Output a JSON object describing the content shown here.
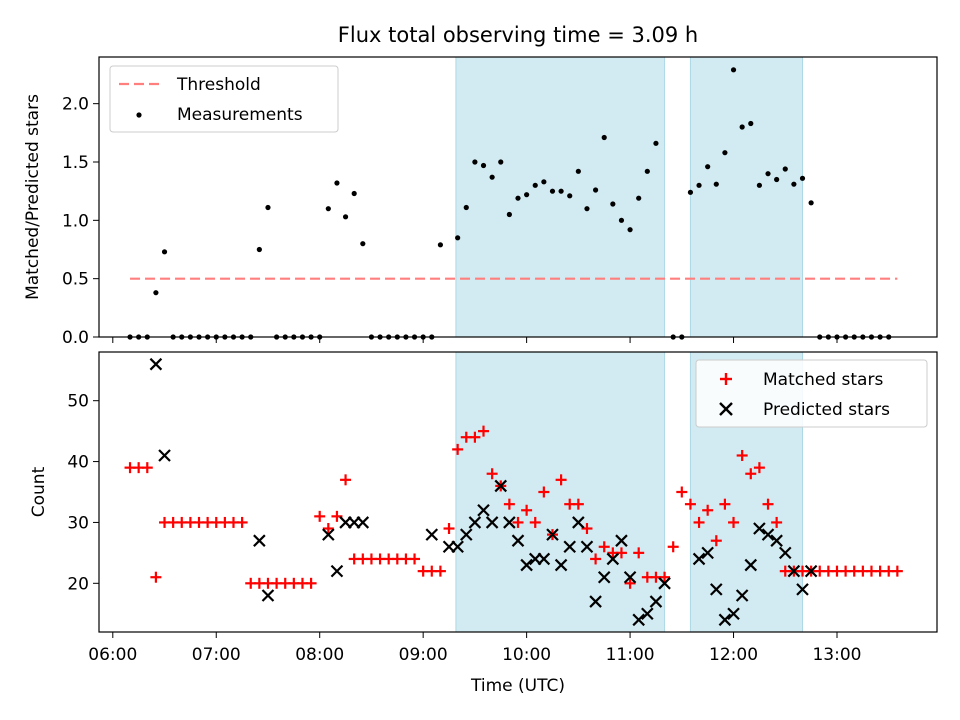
{
  "title": "Flux total observing time = 3.09 h",
  "colors": {
    "threshold": "#ff7f7f",
    "measurement": "#000000",
    "matched": "#ff0000",
    "predicted": "#000000",
    "shade": "#add8e6"
  },
  "chart_data": [
    {
      "type": "scatter",
      "ylabel": "Matched/Predicted stars",
      "ylim": [
        0,
        2.4
      ],
      "yticks": [
        0.0,
        0.5,
        1.0,
        1.5,
        2.0
      ],
      "ytick_labels": [
        "0.0",
        "0.5",
        "1.0",
        "1.5",
        "2.0"
      ],
      "shaded_intervals": [
        [
          "09:19",
          "11:20"
        ],
        [
          "11:35",
          "12:40"
        ]
      ],
      "legend": {
        "position": "top-left",
        "threshold_label": "Threshold",
        "measurement_label": "Measurements"
      },
      "threshold": {
        "value": 0.5,
        "x_start": "06:10",
        "x_end": "13:35"
      },
      "series": [
        {
          "name": "Measurements",
          "x": [
            "06:10",
            "06:15",
            "06:20",
            "06:25",
            "06:30",
            "06:35",
            "06:40",
            "06:45",
            "06:50",
            "06:55",
            "07:00",
            "07:05",
            "07:10",
            "07:15",
            "07:20",
            "07:25",
            "07:30",
            "07:35",
            "07:40",
            "07:45",
            "07:50",
            "07:55",
            "08:00",
            "08:05",
            "08:10",
            "08:15",
            "08:20",
            "08:25",
            "08:30",
            "08:35",
            "08:40",
            "08:45",
            "08:50",
            "08:55",
            "09:00",
            "09:05",
            "09:10",
            "09:20",
            "09:25",
            "09:30",
            "09:35",
            "09:40",
            "09:45",
            "09:50",
            "09:55",
            "10:00",
            "10:05",
            "10:10",
            "10:15",
            "10:20",
            "10:25",
            "10:30",
            "10:35",
            "10:40",
            "10:45",
            "10:50",
            "10:55",
            "11:00",
            "11:05",
            "11:10",
            "11:15",
            "11:25",
            "11:30",
            "11:35",
            "11:40",
            "11:45",
            "11:50",
            "11:55",
            "12:00",
            "12:05",
            "12:10",
            "12:15",
            "12:20",
            "12:25",
            "12:30",
            "12:35",
            "12:40",
            "12:45",
            "12:50",
            "12:55",
            "13:00",
            "13:05",
            "13:10",
            "13:15",
            "13:20",
            "13:25",
            "13:30"
          ],
          "y": [
            0,
            0,
            0,
            0.38,
            0.73,
            0,
            0,
            0,
            0,
            0,
            0,
            0,
            0,
            0,
            0,
            0.75,
            1.11,
            0,
            0,
            0,
            0,
            0,
            0,
            1.1,
            1.32,
            1.03,
            1.23,
            0.8,
            0,
            0,
            0,
            0,
            0,
            0,
            0,
            0,
            0.79,
            0.85,
            1.11,
            1.5,
            1.47,
            1.37,
            1.5,
            1.05,
            1.19,
            1.22,
            1.3,
            1.33,
            1.25,
            1.25,
            1.21,
            1.42,
            1.1,
            1.26,
            1.71,
            1.14,
            1.0,
            0.92,
            1.19,
            1.42,
            1.66,
            0,
            0,
            1.24,
            1.3,
            1.46,
            1.31,
            1.58,
            2.29,
            1.8,
            1.83,
            1.3,
            1.4,
            1.35,
            1.44,
            1.31,
            1.36,
            1.15,
            0,
            0,
            0,
            0,
            0,
            0,
            0,
            0,
            0
          ]
        }
      ]
    },
    {
      "type": "scatter",
      "xlabel": "Time (UTC)",
      "ylabel": "Count",
      "ylim": [
        12,
        58
      ],
      "yticks": [
        20,
        30,
        40,
        50
      ],
      "ytick_labels": [
        "20",
        "30",
        "40",
        "50"
      ],
      "xlim": [
        "05:52",
        "13:58"
      ],
      "xticks": [
        "06:00",
        "07:00",
        "08:00",
        "09:00",
        "10:00",
        "11:00",
        "12:00",
        "13:00"
      ],
      "legend": {
        "position": "top-right",
        "matched_label": "Matched stars",
        "predicted_label": "Predicted stars"
      },
      "series": [
        {
          "name": "Matched stars",
          "x": [
            "06:10",
            "06:15",
            "06:20",
            "06:25",
            "06:30",
            "06:35",
            "06:40",
            "06:45",
            "06:50",
            "06:55",
            "07:00",
            "07:05",
            "07:10",
            "07:15",
            "07:20",
            "07:25",
            "07:30",
            "07:35",
            "07:40",
            "07:45",
            "07:50",
            "07:55",
            "08:00",
            "08:05",
            "08:10",
            "08:15",
            "08:20",
            "08:25",
            "08:30",
            "08:35",
            "08:40",
            "08:45",
            "08:50",
            "08:55",
            "09:00",
            "09:05",
            "09:10",
            "09:15",
            "09:20",
            "09:25",
            "09:30",
            "09:35",
            "09:40",
            "09:45",
            "09:50",
            "09:55",
            "10:00",
            "10:05",
            "10:10",
            "10:15",
            "10:20",
            "10:25",
            "10:30",
            "10:35",
            "10:40",
            "10:45",
            "10:50",
            "10:55",
            "11:00",
            "11:05",
            "11:10",
            "11:15",
            "11:20",
            "11:25",
            "11:30",
            "11:35",
            "11:40",
            "11:45",
            "11:50",
            "11:55",
            "12:00",
            "12:05",
            "12:10",
            "12:15",
            "12:20",
            "12:25",
            "12:30",
            "12:35",
            "12:40",
            "12:45",
            "12:50",
            "12:55",
            "13:00",
            "13:05",
            "13:10",
            "13:15",
            "13:20",
            "13:25",
            "13:30",
            "13:35"
          ],
          "y": [
            39,
            39,
            39,
            21,
            30,
            30,
            30,
            30,
            30,
            30,
            30,
            30,
            30,
            30,
            20,
            20,
            20,
            20,
            20,
            20,
            20,
            20,
            31,
            29,
            31,
            37,
            24,
            24,
            24,
            24,
            24,
            24,
            24,
            24,
            22,
            22,
            22,
            29,
            42,
            44,
            44,
            45,
            38,
            36,
            33,
            30,
            32,
            30,
            35,
            28,
            37,
            33,
            33,
            29,
            24,
            26,
            25,
            25,
            20,
            25,
            21,
            21,
            21,
            26,
            35,
            33,
            30,
            32,
            27,
            33,
            30,
            41,
            38,
            39,
            33,
            30,
            22,
            22,
            22,
            22,
            22,
            22,
            22,
            22,
            22,
            22,
            22,
            22,
            22,
            22
          ],
          "x_index_offset": 0
        },
        {
          "name": "Predicted stars",
          "x": [
            "06:25",
            "06:30",
            "07:25",
            "07:30",
            "08:05",
            "08:10",
            "08:15",
            "08:20",
            "08:25",
            "09:05",
            "09:15",
            "09:20",
            "09:25",
            "09:30",
            "09:35",
            "09:40",
            "09:45",
            "09:50",
            "09:55",
            "10:00",
            "10:05",
            "10:10",
            "10:15",
            "10:20",
            "10:25",
            "10:30",
            "10:35",
            "10:40",
            "10:45",
            "10:50",
            "10:55",
            "11:00",
            "11:05",
            "11:10",
            "11:15",
            "11:20",
            "11:40",
            "11:45",
            "11:50",
            "11:55",
            "12:00",
            "12:05",
            "12:10",
            "12:15",
            "12:20",
            "12:25",
            "12:30",
            "12:35",
            "12:40",
            "12:45"
          ],
          "y": [
            56,
            41,
            27,
            18,
            28,
            22,
            30,
            30,
            30,
            28,
            26,
            26,
            28,
            30,
            32,
            30,
            36,
            30,
            27,
            23,
            24,
            24,
            28,
            23,
            26,
            30,
            26,
            17,
            21,
            24,
            27,
            21,
            14,
            15,
            17,
            20,
            24,
            25,
            19,
            14,
            15,
            18,
            23,
            29,
            28,
            27,
            25,
            22,
            19,
            22
          ]
        }
      ]
    }
  ]
}
